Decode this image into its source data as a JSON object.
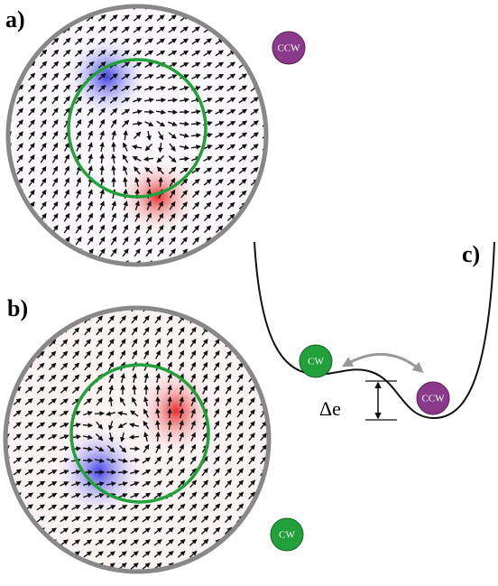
{
  "panels": [
    {
      "label": "a)",
      "state": "CCW"
    },
    {
      "label": "b)",
      "state": "CW"
    }
  ],
  "energy_diagram": {
    "label": "c)",
    "states": [
      "CW",
      "CCW"
    ],
    "barrier_label": "Δe"
  }
}
